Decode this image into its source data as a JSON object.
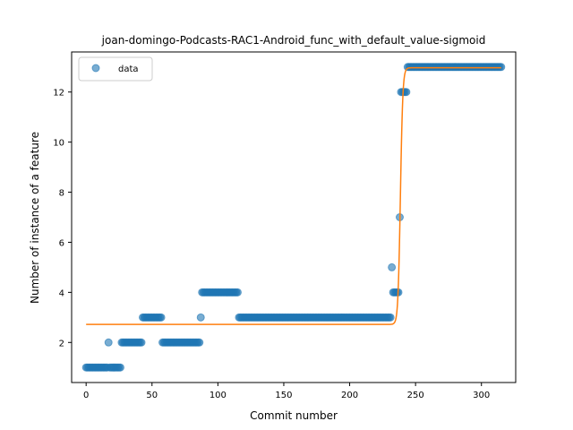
{
  "chart_data": {
    "type": "scatter",
    "title": "joan-domingo-Podcasts-RAC1-Android_func_with_default_value-sigmoid",
    "xlabel": "Commit number",
    "ylabel": "Number of instance of a feature",
    "xlim": [
      -11,
      326
    ],
    "ylim": [
      0.4,
      13.6
    ],
    "xticks": [
      0,
      50,
      100,
      150,
      200,
      250,
      300
    ],
    "yticks": [
      2,
      4,
      6,
      8,
      10,
      12
    ],
    "grid": false,
    "legend": {
      "position": "top-left",
      "entries": [
        "data"
      ]
    },
    "colors": {
      "data": "#1f77b4",
      "fit": "#ff7f0e"
    },
    "series": [
      {
        "name": "data",
        "kind": "scatter",
        "segments": [
          {
            "x_start": 0,
            "x_end": 16,
            "y": 1
          },
          {
            "x_start": 17,
            "x_end": 17,
            "y": 2
          },
          {
            "x_start": 18,
            "x_end": 26,
            "y": 1
          },
          {
            "x_start": 27,
            "x_end": 42,
            "y": 2
          },
          {
            "x_start": 43,
            "x_end": 57,
            "y": 3
          },
          {
            "x_start": 58,
            "x_end": 86,
            "y": 2
          },
          {
            "x_start": 87,
            "x_end": 87,
            "y": 3
          },
          {
            "x_start": 88,
            "x_end": 115,
            "y": 4
          },
          {
            "x_start": 116,
            "x_end": 231,
            "y": 3
          },
          {
            "x_start": 232,
            "x_end": 232,
            "y": 5
          },
          {
            "x_start": 233,
            "x_end": 237,
            "y": 4
          },
          {
            "x_start": 238,
            "x_end": 238,
            "y": 7
          },
          {
            "x_start": 239,
            "x_end": 243,
            "y": 12
          },
          {
            "x_start": 244,
            "x_end": 315,
            "y": 13
          }
        ]
      },
      {
        "kind": "line",
        "model": "sigmoid",
        "params": {
          "low": 2.72,
          "high": 12.97,
          "midpoint": 238.5,
          "steepness": 1.1
        },
        "x_range": [
          0,
          315
        ]
      }
    ]
  }
}
